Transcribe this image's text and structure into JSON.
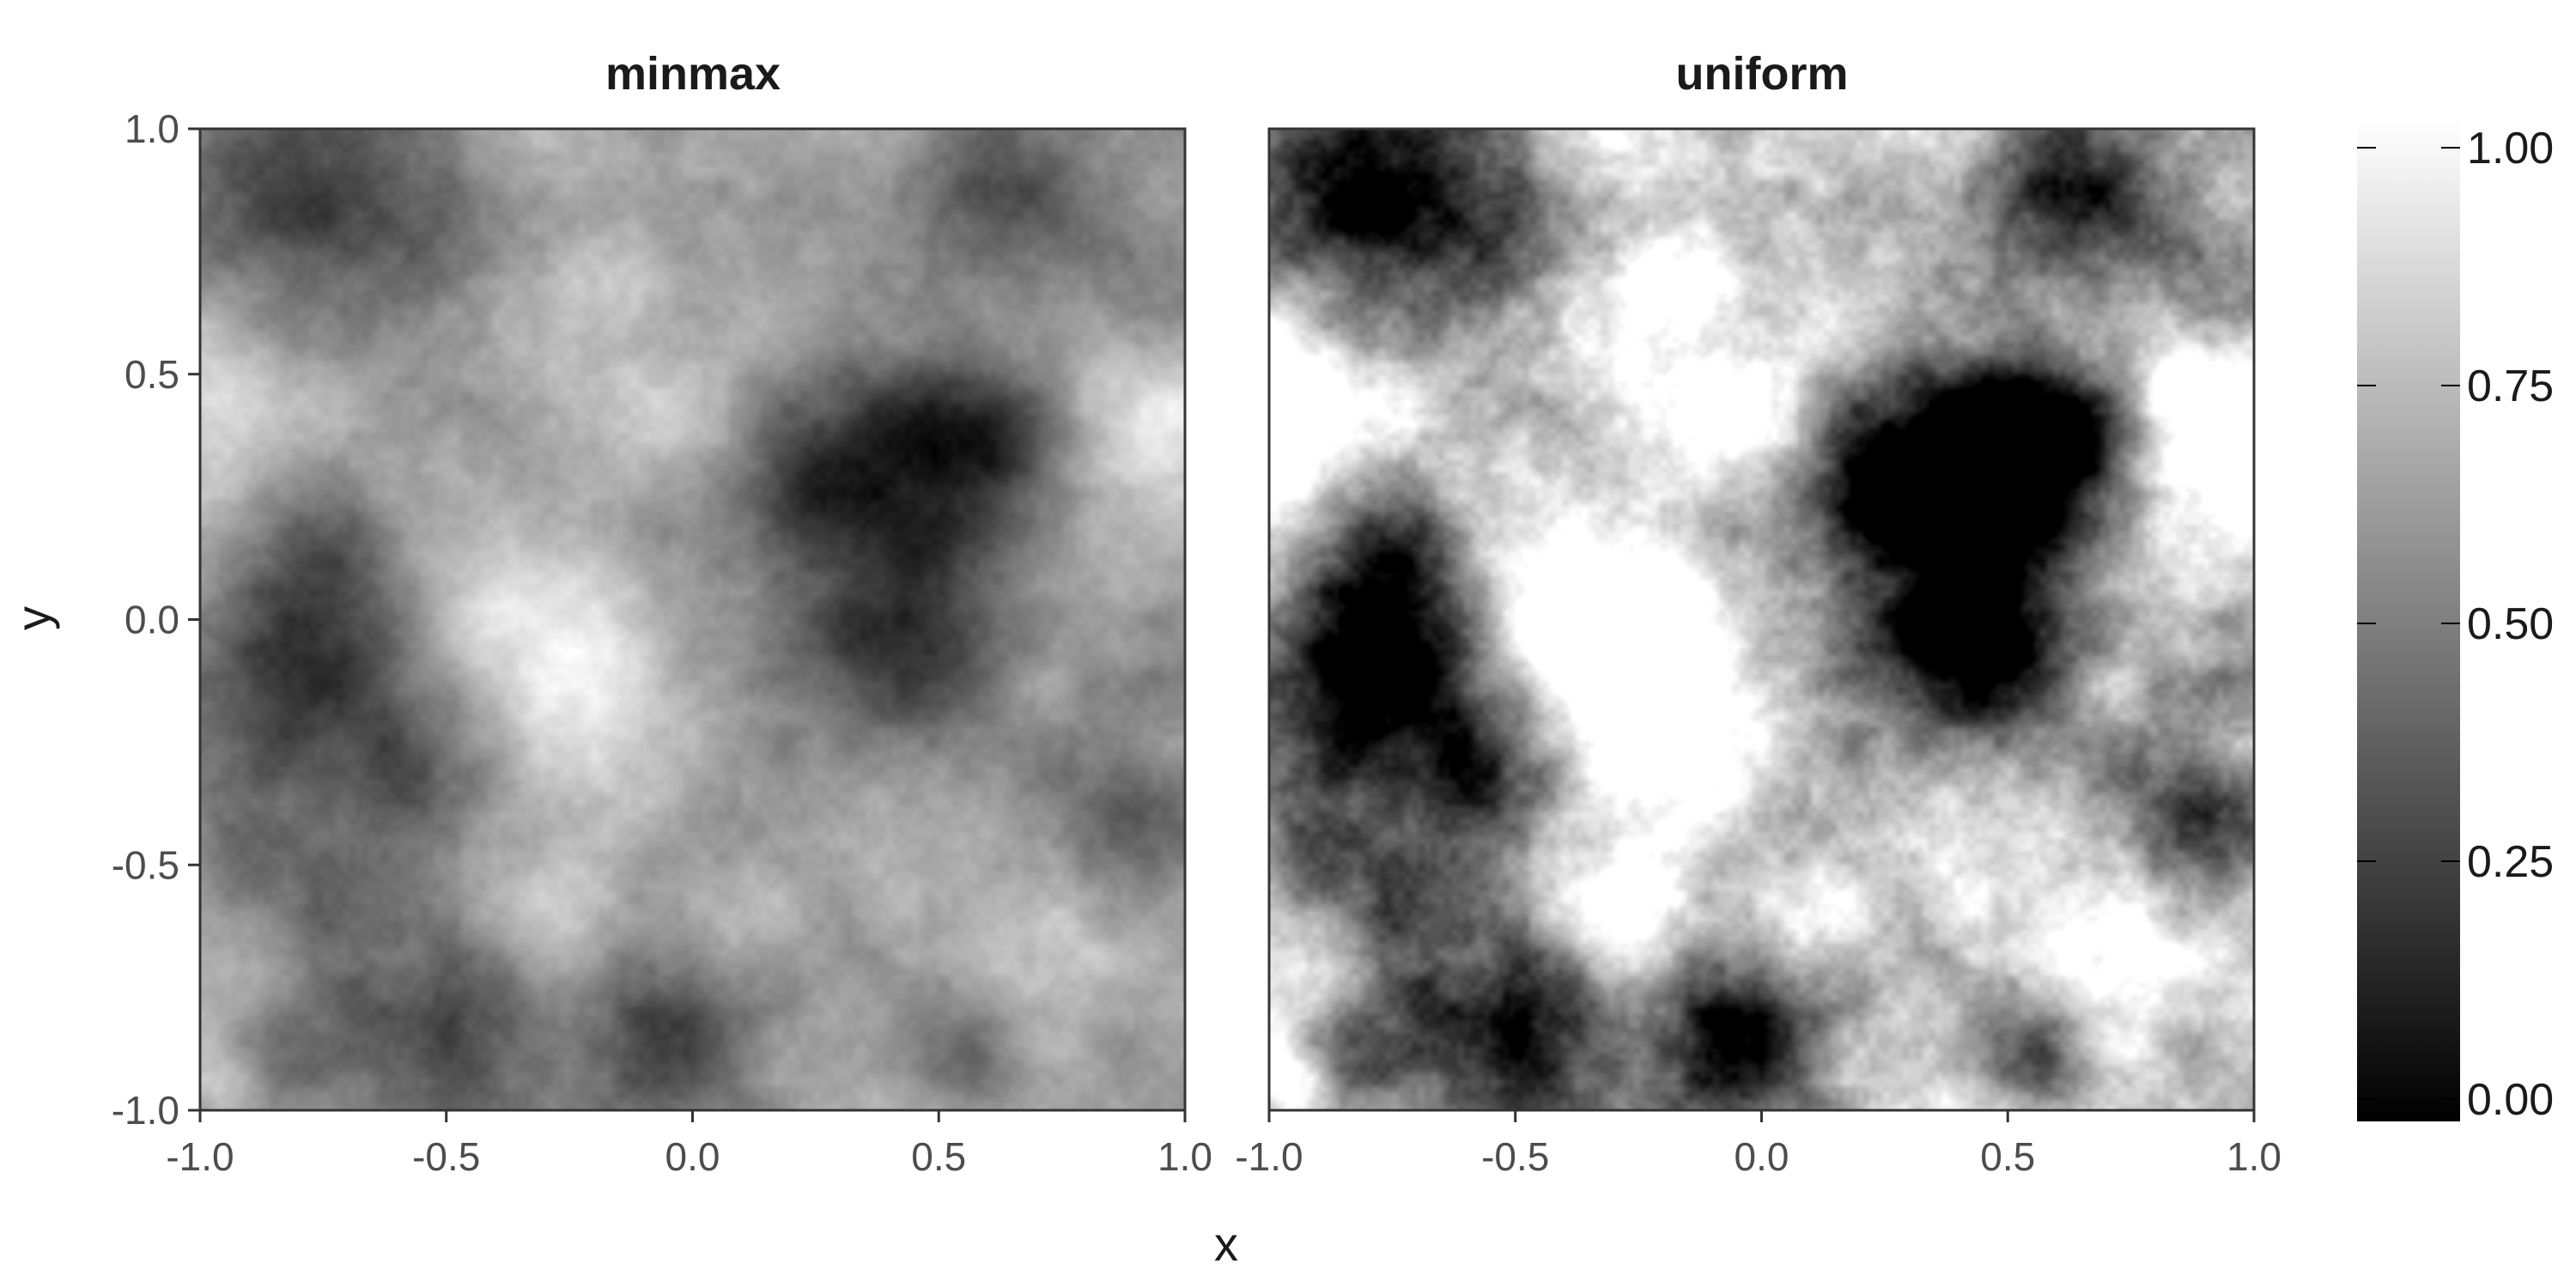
{
  "chart_data": {
    "type": "heatmap",
    "colormap": "grayscale",
    "color_low": "#000000",
    "color_high": "#ffffff",
    "xlabel": "x",
    "ylabel": "y",
    "xlim": [
      -1.0,
      1.0
    ],
    "ylim": [
      -1.0,
      1.0
    ],
    "x_ticks": [
      "-1.0",
      "-0.5",
      "0.0",
      "0.5",
      "1.0"
    ],
    "y_ticks": [
      "-1.0",
      "-0.5",
      "0.0",
      "0.5",
      "1.0"
    ],
    "grid": false,
    "legend": {
      "type": "colorbar",
      "placement": "right",
      "range": [
        0.0,
        1.0
      ],
      "ticks": [
        "0.00",
        "0.25",
        "0.50",
        "0.75",
        "1.00"
      ]
    },
    "panels": [
      {
        "title": "minmax",
        "contrast": 1.0
      },
      {
        "title": "uniform",
        "contrast": 2.2
      }
    ],
    "features": [
      {
        "x": 0.45,
        "y": 0.3,
        "sigma": 0.18,
        "amp": -0.6
      },
      {
        "x": 0.62,
        "y": 0.36,
        "sigma": 0.1,
        "amp": -0.3
      },
      {
        "x": 0.2,
        "y": 0.25,
        "sigma": 0.12,
        "amp": -0.25
      },
      {
        "x": 0.38,
        "y": -0.1,
        "sigma": 0.13,
        "amp": -0.35
      },
      {
        "x": 0.55,
        "y": -0.05,
        "sigma": 0.1,
        "amp": -0.2
      },
      {
        "x": -0.8,
        "y": 0.8,
        "sigma": 0.2,
        "amp": -0.4
      },
      {
        "x": -0.45,
        "y": 0.8,
        "sigma": 0.12,
        "amp": -0.2
      },
      {
        "x": 0.65,
        "y": 0.85,
        "sigma": 0.15,
        "amp": -0.35
      },
      {
        "x": 0.25,
        "y": 0.85,
        "sigma": 0.1,
        "amp": -0.15
      },
      {
        "x": -0.8,
        "y": -0.1,
        "sigma": 0.15,
        "amp": -0.5
      },
      {
        "x": -0.75,
        "y": 0.15,
        "sigma": 0.1,
        "amp": -0.25
      },
      {
        "x": -0.6,
        "y": -0.35,
        "sigma": 0.12,
        "amp": -0.35
      },
      {
        "x": -0.85,
        "y": -0.55,
        "sigma": 0.1,
        "amp": -0.25
      },
      {
        "x": -0.5,
        "y": -0.85,
        "sigma": 0.15,
        "amp": -0.4
      },
      {
        "x": -0.05,
        "y": -0.85,
        "sigma": 0.12,
        "amp": -0.4
      },
      {
        "x": 0.55,
        "y": -0.9,
        "sigma": 0.1,
        "amp": -0.3
      },
      {
        "x": -0.85,
        "y": -0.9,
        "sigma": 0.1,
        "amp": -0.2
      },
      {
        "x": 0.9,
        "y": -0.4,
        "sigma": 0.12,
        "amp": -0.3
      },
      {
        "x": 0.95,
        "y": 0.6,
        "sigma": 0.08,
        "amp": -0.15
      },
      {
        "x": -0.1,
        "y": 0.2,
        "sigma": 0.08,
        "amp": -0.15
      },
      {
        "x": -0.3,
        "y": 0.0,
        "sigma": 0.15,
        "amp": 0.35
      },
      {
        "x": -0.15,
        "y": -0.25,
        "sigma": 0.15,
        "amp": 0.3
      },
      {
        "x": -0.25,
        "y": -0.6,
        "sigma": 0.1,
        "amp": 0.15
      },
      {
        "x": -0.95,
        "y": 0.5,
        "sigma": 0.15,
        "amp": 0.3
      },
      {
        "x": 0.95,
        "y": 0.45,
        "sigma": 0.12,
        "amp": 0.25
      },
      {
        "x": -0.1,
        "y": 0.6,
        "sigma": 0.15,
        "amp": 0.2
      },
      {
        "x": 0.1,
        "y": -0.6,
        "sigma": 0.1,
        "amp": 0.15
      },
      {
        "x": 0.35,
        "y": -0.45,
        "sigma": 0.1,
        "amp": 0.1
      },
      {
        "x": -0.3,
        "y": 0.95,
        "sigma": 0.1,
        "amp": 0.15
      },
      {
        "x": 0.95,
        "y": 0.2,
        "sigma": 0.1,
        "amp": 0.1
      },
      {
        "x": -0.95,
        "y": -0.95,
        "sigma": 0.06,
        "amp": 0.25
      },
      {
        "x": 0.75,
        "y": -0.7,
        "sigma": 0.08,
        "amp": 0.15
      }
    ]
  }
}
